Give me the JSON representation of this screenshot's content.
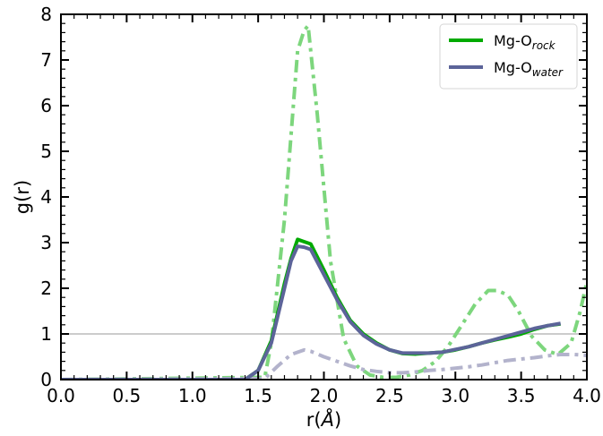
{
  "chart_data": {
    "type": "line",
    "xlabel_main": "r(",
    "xlabel_unit": "Å",
    "xlabel_tail": ")",
    "ylabel": "g(r)",
    "xlim": [
      0.0,
      4.0
    ],
    "ylim": [
      0,
      8
    ],
    "x_ticks": [
      0.0,
      0.5,
      1.0,
      1.5,
      2.0,
      2.5,
      3.0,
      3.5,
      4.0
    ],
    "x_tick_labels": [
      "0.0",
      "0.5",
      "1.0",
      "1.5",
      "2.0",
      "2.5",
      "3.0",
      "3.5",
      "4.0"
    ],
    "y_ticks": [
      0,
      1,
      2,
      3,
      4,
      5,
      6,
      7,
      8
    ],
    "y_tick_labels": [
      "0",
      "1",
      "2",
      "3",
      "4",
      "5",
      "6",
      "7",
      "8"
    ],
    "x_minor_step": 0.1,
    "y_minor_step": 0.2,
    "grid": false,
    "legend_position": "top-right",
    "reference_line": {
      "y": 1.0,
      "color": "#cccccc"
    },
    "series": [
      {
        "name_main": "Mg-O",
        "name_sub": "rock",
        "style": "solid",
        "color": "#00aa00",
        "in_legend": true,
        "x": [
          0.0,
          1.4,
          1.5,
          1.6,
          1.7,
          1.75,
          1.8,
          1.85,
          1.9,
          2.0,
          2.1,
          2.2,
          2.3,
          2.4,
          2.5,
          2.6,
          2.7,
          2.8,
          2.9,
          3.0,
          3.1,
          3.2,
          3.3,
          3.4,
          3.5,
          3.6,
          3.7,
          3.8
        ],
        "y": [
          0.0,
          0.0,
          0.2,
          0.85,
          2.1,
          2.65,
          3.07,
          3.02,
          2.97,
          2.4,
          1.8,
          1.3,
          1.0,
          0.8,
          0.65,
          0.57,
          0.56,
          0.58,
          0.6,
          0.65,
          0.72,
          0.8,
          0.87,
          0.93,
          1.0,
          1.1,
          1.18,
          1.22
        ]
      },
      {
        "name_main": "Mg-O",
        "name_sub": "water",
        "style": "solid",
        "color": "#5c6499",
        "in_legend": true,
        "x": [
          0.0,
          1.4,
          1.5,
          1.6,
          1.7,
          1.75,
          1.8,
          1.85,
          1.9,
          2.0,
          2.1,
          2.2,
          2.3,
          2.4,
          2.5,
          2.6,
          2.7,
          2.8,
          2.9,
          3.0,
          3.1,
          3.2,
          3.3,
          3.4,
          3.5,
          3.6,
          3.7,
          3.8
        ],
        "y": [
          0.0,
          0.0,
          0.2,
          0.8,
          2.0,
          2.6,
          2.92,
          2.9,
          2.85,
          2.3,
          1.75,
          1.27,
          0.97,
          0.78,
          0.65,
          0.58,
          0.58,
          0.58,
          0.6,
          0.66,
          0.72,
          0.8,
          0.88,
          0.96,
          1.04,
          1.12,
          1.18,
          1.23
        ]
      },
      {
        "name_main": "",
        "name_sub": "",
        "style": "dashdot",
        "color": "#7dd67d",
        "in_legend": false,
        "x": [
          0.0,
          1.55,
          1.6,
          1.7,
          1.8,
          1.85,
          1.88,
          1.95,
          2.05,
          2.15,
          2.25,
          2.35,
          2.45,
          2.55,
          2.65,
          2.75,
          2.85,
          2.95,
          3.05,
          3.15,
          3.25,
          3.32,
          3.4,
          3.48,
          3.58,
          3.68,
          3.78,
          3.88,
          3.95,
          4.0
        ],
        "y": [
          0.0,
          0.05,
          0.8,
          3.5,
          7.2,
          7.65,
          7.75,
          5.8,
          2.6,
          0.9,
          0.3,
          0.1,
          0.05,
          0.05,
          0.1,
          0.2,
          0.4,
          0.75,
          1.2,
          1.65,
          1.95,
          1.95,
          1.85,
          1.5,
          0.95,
          0.65,
          0.55,
          0.8,
          1.5,
          2.15
        ]
      },
      {
        "name_main": "",
        "name_sub": "",
        "style": "dashdot",
        "color": "#b3b3cc",
        "in_legend": false,
        "x": [
          0.0,
          1.55,
          1.65,
          1.75,
          1.85,
          1.9,
          2.0,
          2.1,
          2.2,
          2.3,
          2.4,
          2.5,
          2.6,
          2.7,
          2.8,
          2.9,
          3.0,
          3.1,
          3.2,
          3.3,
          3.4,
          3.5,
          3.6,
          3.7,
          3.8,
          3.9,
          4.0
        ],
        "y": [
          0.0,
          0.02,
          0.3,
          0.55,
          0.65,
          0.62,
          0.5,
          0.4,
          0.3,
          0.22,
          0.18,
          0.15,
          0.15,
          0.17,
          0.2,
          0.22,
          0.25,
          0.28,
          0.32,
          0.37,
          0.42,
          0.45,
          0.48,
          0.52,
          0.55,
          0.55,
          0.53
        ]
      }
    ]
  }
}
